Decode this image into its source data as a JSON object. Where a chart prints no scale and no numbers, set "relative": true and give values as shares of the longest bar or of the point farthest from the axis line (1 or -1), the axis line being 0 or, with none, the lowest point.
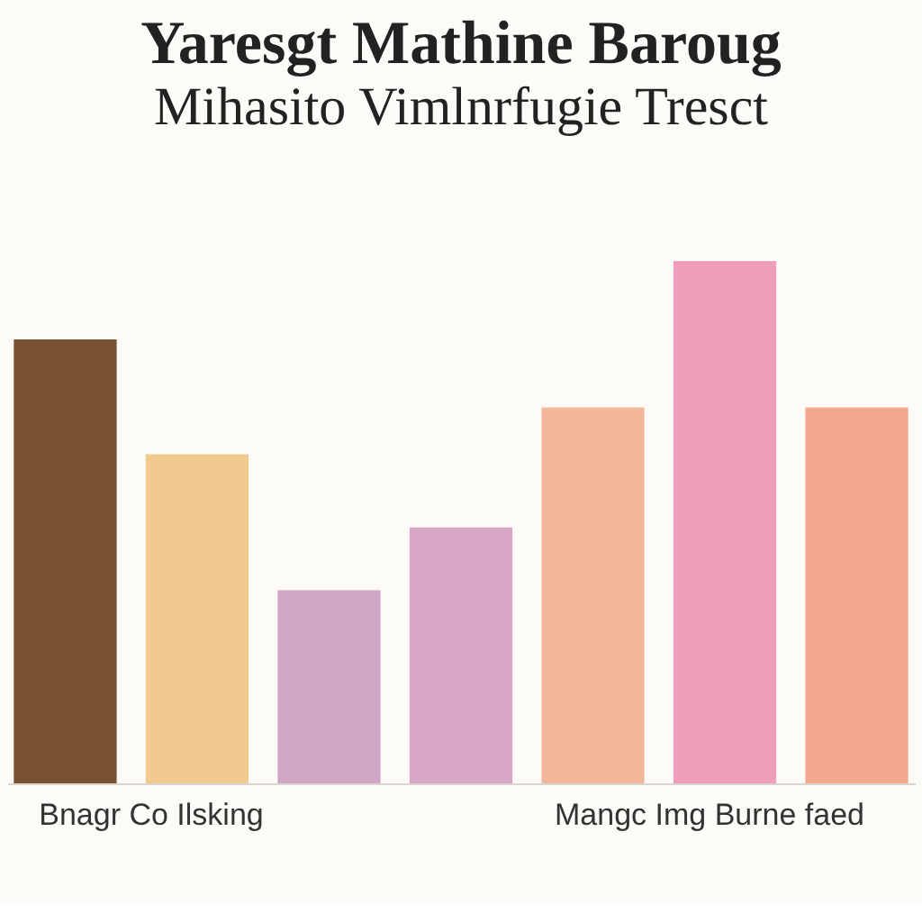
{
  "chart_data": {
    "type": "bar",
    "title": "Yaresgt Mathine Baroug",
    "subtitle": "Mihasito Vimlnrfugie Tresct",
    "categories": [
      null,
      null,
      null,
      null,
      null,
      null,
      null
    ],
    "values": [
      0.85,
      0.63,
      0.37,
      0.49,
      0.72,
      1.0,
      0.72
    ],
    "colors": [
      "#7a5232",
      "#f2c98e",
      "#cfa6c4",
      "#d8a8c6",
      "#f2b79a",
      "#ee9dbb",
      "#f2a98e"
    ],
    "relative": true,
    "grid": false,
    "annotations": [
      "Bnagr Co Ilsking",
      "Mangc Img Burne faed"
    ]
  }
}
